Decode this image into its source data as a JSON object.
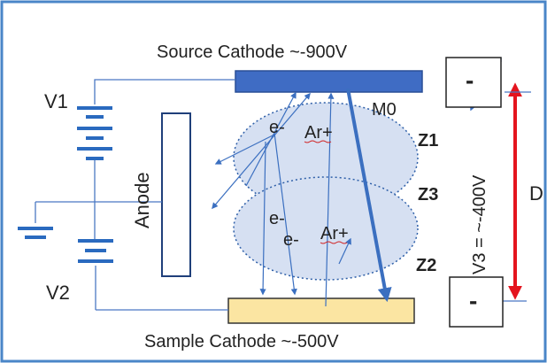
{
  "diagram": {
    "source_cathode_label": "Source Cathode  ~-900V",
    "sample_cathode_label": "Sample Cathode  ~-500V",
    "v1_label": "V1",
    "v2_label": "V2",
    "anode_label": "Anode",
    "m0_label": "M0",
    "z1_label": "Z1",
    "z2_label": "Z2",
    "z3_label": "Z3",
    "electron_label_1": "e-",
    "electron_label_2": "e-",
    "electron_label_3": "e-",
    "argon_label_1": "Ar+",
    "argon_label_2": "Ar+",
    "v3_label": "V3 = ~-400V",
    "distance_label": "D",
    "upper_terminal_sign": "-",
    "lower_terminal_sign": "-"
  },
  "colors": {
    "frame_border": "#4a86c8",
    "source_cathode_fill": "#3f6cc4",
    "sample_cathode_fill": "#fbe5a2",
    "plasma_fill": "#d6e0f2",
    "plasma_border": "#2e5fa8",
    "arrow_blue": "#3b6fc0",
    "distance_arrow": "#e4141e"
  }
}
